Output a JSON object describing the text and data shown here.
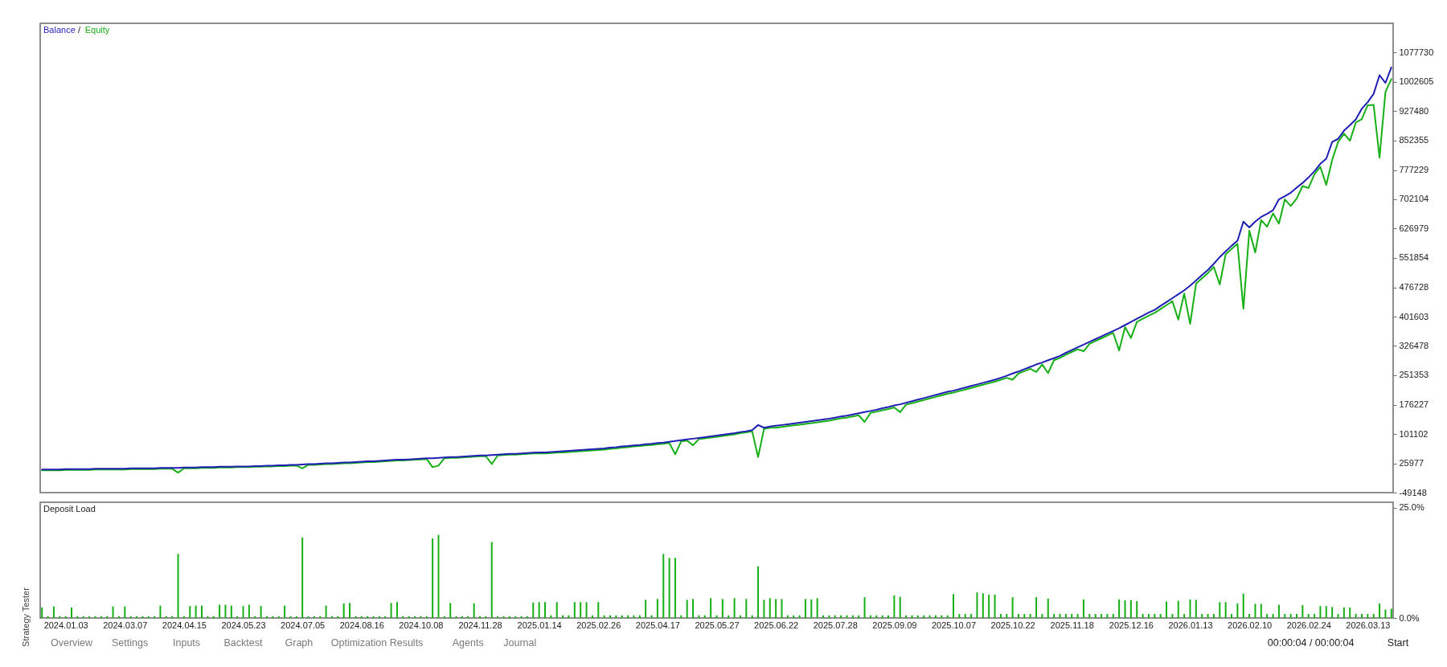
{
  "chart_data": [
    {
      "type": "line",
      "legend": "top left",
      "tick_labels": "y",
      "ylim": [
        -49148,
        1152855
      ],
      "yticks": [
        -49148,
        25977,
        101102,
        176227,
        251353,
        326478,
        401603,
        476728,
        551854,
        626979,
        702104,
        777229,
        852355,
        927480,
        1002605,
        1077730
      ],
      "annotations": [
        "/"
      ],
      "categories": [
        null,
        null,
        null,
        null,
        "2024.01.03",
        null,
        null,
        null,
        null,
        null,
        null,
        null,
        null,
        null,
        "2024.03.07",
        null,
        null,
        null,
        null,
        null,
        null,
        null,
        null,
        null,
        "2024.04.15",
        null,
        null,
        null,
        null,
        null,
        null,
        null,
        null,
        null,
        "2024.05.23",
        null,
        null,
        null,
        null,
        null,
        null,
        null,
        null,
        null,
        "2024.07.05",
        null,
        null,
        null,
        null,
        null,
        null,
        null,
        null,
        null,
        "2024.08.16",
        null,
        null,
        null,
        null,
        null,
        null,
        null,
        null,
        null,
        "2024.10.08",
        null,
        null,
        null,
        null,
        null,
        null,
        null,
        null,
        null,
        "2024.11.28",
        null,
        null,
        null,
        null,
        null,
        null,
        null,
        null,
        null,
        "2025.01.14",
        null,
        null,
        null,
        null,
        null,
        null,
        null,
        null,
        null,
        "2025.02.26",
        null,
        null,
        null,
        null,
        null,
        null,
        null,
        null,
        null,
        "2025.04.17",
        null,
        null,
        null,
        null,
        null,
        null,
        null,
        null,
        null,
        "2025.05.27",
        null,
        null,
        null,
        null,
        null,
        null,
        null,
        null,
        null,
        "2025.06.22",
        null,
        null,
        null,
        null,
        null,
        null,
        null,
        null,
        null,
        "2025.07.28",
        null,
        null,
        null,
        null,
        null,
        null,
        null,
        null,
        null,
        "2025.09.09",
        null,
        null,
        null,
        null,
        null,
        null,
        null,
        null,
        null,
        "2025.10.07",
        null,
        null,
        null,
        null,
        null,
        null,
        null,
        null,
        null,
        "2025.10.22",
        null,
        null,
        null,
        null,
        null,
        null,
        null,
        null,
        null,
        "2025.11.18",
        null,
        null,
        null,
        null,
        null,
        null,
        null,
        null,
        null,
        "2025.12.16",
        null,
        null,
        null,
        null,
        null,
        null,
        null,
        null,
        null,
        "2026.01.13",
        null,
        null,
        null,
        null,
        null,
        null,
        null,
        null,
        null,
        "2026.02.10",
        null,
        null,
        null,
        null,
        null,
        null,
        null,
        null,
        null,
        "2026.02.24",
        null,
        null,
        null,
        null,
        null,
        null,
        null,
        null,
        null,
        "2026.03.13",
        null,
        null,
        null,
        null
      ],
      "series": [
        {
          "name": "Balance",
          "color": "#1f1fb4",
          "values": [
            10000,
            10000,
            10000,
            10000,
            11000,
            11000,
            11000,
            11000,
            11000,
            12000,
            12000,
            12000,
            12000,
            12000,
            12000,
            13000,
            13000,
            13000,
            13000,
            13000,
            14000,
            14000,
            14000,
            14000,
            15000,
            15000,
            15000,
            16000,
            16000,
            16000,
            17000,
            17000,
            17000,
            18000,
            18000,
            18000,
            19000,
            19000,
            20000,
            20000,
            21000,
            21000,
            22000,
            22000,
            23000,
            24000,
            24000,
            25000,
            26000,
            26000,
            27000,
            28000,
            28000,
            29000,
            30000,
            31000,
            31000,
            32000,
            33000,
            34000,
            35000,
            35000,
            36000,
            37000,
            38000,
            39000,
            39000,
            40000,
            41000,
            42000,
            42000,
            43000,
            44000,
            45000,
            46000,
            46000,
            47000,
            48000,
            49000,
            50000,
            50000,
            51000,
            52000,
            53000,
            54000,
            54000,
            55000,
            56000,
            57000,
            58000,
            59000,
            60000,
            61000,
            62000,
            63000,
            64000,
            66000,
            67000,
            69000,
            70000,
            72000,
            73000,
            75000,
            76000,
            78000,
            79000,
            81000,
            83000,
            85000,
            87000,
            89000,
            91000,
            93000,
            95000,
            97000,
            99000,
            101000,
            103000,
            106000,
            108000,
            111000,
            124000,
            117000,
            120000,
            122000,
            124000,
            126000,
            128000,
            130000,
            132000,
            134000,
            136000,
            138000,
            140000,
            143000,
            146000,
            148000,
            151000,
            154000,
            157000,
            160000,
            163000,
            167000,
            170000,
            174000,
            177000,
            181000,
            185000,
            189000,
            193000,
            197000,
            201000,
            205000,
            209000,
            212000,
            216000,
            220000,
            224000,
            228000,
            232000,
            236000,
            240000,
            245000,
            250000,
            256000,
            261000,
            267000,
            273000,
            279000,
            284000,
            290000,
            295000,
            301000,
            309000,
            316000,
            323000,
            330000,
            337000,
            344000,
            351000,
            358000,
            365000,
            372000,
            380000,
            388000,
            396000,
            404000,
            412000,
            419000,
            429000,
            439000,
            449000,
            459000,
            469000,
            481000,
            494000,
            508000,
            521000,
            537000,
            554000,
            569000,
            583000,
            596000,
            645000,
            630000,
            645000,
            657000,
            665000,
            674000,
            702000,
            710000,
            719000,
            732000,
            744000,
            758000,
            774000,
            793000,
            806000,
            849000,
            857000,
            878000,
            892000,
            907000,
            934000,
            951000,
            972000,
            1020000,
            1000000,
            1040000
          ]
        },
        {
          "name": "Equity",
          "color": "#16b016",
          "values": [
            8000,
            8000,
            8000,
            8000,
            9000,
            9000,
            9000,
            9000,
            9000,
            10000,
            10000,
            10000,
            10000,
            10000,
            10000,
            11000,
            11000,
            11000,
            11000,
            11000,
            12000,
            12000,
            12000,
            2000,
            13000,
            13000,
            13000,
            14000,
            14000,
            14000,
            15000,
            15000,
            15000,
            16000,
            16000,
            16000,
            17000,
            17000,
            18000,
            18000,
            19000,
            19000,
            20000,
            20000,
            13000,
            22000,
            22000,
            23000,
            24000,
            24000,
            25000,
            26000,
            26000,
            27000,
            28000,
            29000,
            29000,
            30000,
            31000,
            32000,
            33000,
            33000,
            34000,
            35000,
            36000,
            37000,
            16000,
            20000,
            39000,
            40000,
            40000,
            41000,
            42000,
            43000,
            44000,
            44000,
            24000,
            46000,
            47000,
            48000,
            48000,
            49000,
            50000,
            51000,
            51000,
            51000,
            52000,
            53000,
            54000,
            55000,
            56000,
            57000,
            58000,
            59000,
            60000,
            61000,
            63000,
            64000,
            66000,
            67000,
            69000,
            70000,
            72000,
            73000,
            75000,
            76000,
            78000,
            49000,
            82000,
            84000,
            72000,
            88000,
            90000,
            92000,
            94000,
            96000,
            98000,
            100000,
            103000,
            105000,
            108000,
            42000,
            114000,
            117000,
            117000,
            119000,
            121000,
            123000,
            125000,
            127000,
            129000,
            131000,
            133000,
            135000,
            138000,
            141000,
            143000,
            146000,
            149000,
            132000,
            155000,
            158000,
            162000,
            165000,
            169000,
            157000,
            176000,
            180000,
            184000,
            188000,
            192000,
            196000,
            200000,
            204000,
            207000,
            211000,
            215000,
            219000,
            223000,
            227000,
            231000,
            235000,
            240000,
            245000,
            240000,
            256000,
            262000,
            268000,
            260000,
            279000,
            257000,
            290000,
            296000,
            304000,
            311000,
            318000,
            313000,
            332000,
            339000,
            346000,
            353000,
            360000,
            315000,
            375000,
            347000,
            388000,
            396000,
            404000,
            411000,
            421000,
            431000,
            441000,
            394000,
            461000,
            383000,
            486000,
            500000,
            513000,
            529000,
            484000,
            561000,
            575000,
            588000,
            422000,
            622000,
            566000,
            649000,
            632000,
            666000,
            640000,
            702000,
            685000,
            704000,
            736000,
            731000,
            766000,
            785000,
            739000,
            803000,
            849000,
            870000,
            852000,
            899000,
            907000,
            943000,
            944000,
            809000,
            977000,
            1010000
          ]
        }
      ]
    },
    {
      "type": "bar",
      "title": "Deposit Load",
      "ylim": [
        0,
        26.2
      ],
      "yticks": [
        {
          "value": 0,
          "label": "0.0%"
        },
        {
          "value": 25,
          "label": "25.0%"
        }
      ],
      "annotations": [
        "Strategy Tester",
        "Overview",
        "Settings",
        "Inputs",
        "Backtest",
        "Graph",
        "Optimization Results",
        "Agents",
        "Journal",
        "00:00:04 / 00:00:04",
        "Start"
      ],
      "categories": [
        null,
        null,
        null,
        null,
        "2024.01.03",
        null,
        null,
        null,
        null,
        null,
        null,
        null,
        null,
        null,
        "2024.03.07",
        null,
        null,
        null,
        null,
        null,
        null,
        null,
        null,
        null,
        "2024.04.15",
        null,
        null,
        null,
        null,
        null,
        null,
        null,
        null,
        null,
        "2024.05.23",
        null,
        null,
        null,
        null,
        null,
        null,
        null,
        null,
        null,
        "2024.07.05",
        null,
        null,
        null,
        null,
        null,
        null,
        null,
        null,
        null,
        "2024.08.16",
        null,
        null,
        null,
        null,
        null,
        null,
        null,
        null,
        null,
        "2024.10.08",
        null,
        null,
        null,
        null,
        null,
        null,
        null,
        null,
        null,
        "2024.11.28",
        null,
        null,
        null,
        null,
        null,
        null,
        null,
        null,
        null,
        "2025.01.14",
        null,
        null,
        null,
        null,
        null,
        null,
        null,
        null,
        null,
        "2025.02.26",
        null,
        null,
        null,
        null,
        null,
        null,
        null,
        null,
        null,
        "2025.04.17",
        null,
        null,
        null,
        null,
        null,
        null,
        null,
        null,
        null,
        "2025.05.27",
        null,
        null,
        null,
        null,
        null,
        null,
        null,
        null,
        null,
        "2025.06.22",
        null,
        null,
        null,
        null,
        null,
        null,
        null,
        null,
        null,
        "2025.07.28",
        null,
        null,
        null,
        null,
        null,
        null,
        null,
        null,
        null,
        "2025.09.09",
        null,
        null,
        null,
        null,
        null,
        null,
        null,
        null,
        null,
        "2025.10.07",
        null,
        null,
        null,
        null,
        null,
        null,
        null,
        null,
        null,
        "2025.10.22",
        null,
        null,
        null,
        null,
        null,
        null,
        null,
        null,
        null,
        "2025.11.18",
        null,
        null,
        null,
        null,
        null,
        null,
        null,
        null,
        null,
        "2025.12.16",
        null,
        null,
        null,
        null,
        null,
        null,
        null,
        null,
        null,
        "2026.01.13",
        null,
        null,
        null,
        null,
        null,
        null,
        null,
        null,
        null,
        "2026.02.10",
        null,
        null,
        null,
        null,
        null,
        null,
        null,
        null,
        null,
        "2026.02.24",
        null,
        null,
        null,
        null,
        null,
        null,
        null,
        null,
        null,
        "2026.03.13",
        null,
        null,
        null,
        null
      ],
      "series": [
        {
          "color": "#16b016",
          "values": [
            2.4,
            0.4,
            2.6,
            0.4,
            0.4,
            2.4,
            0.4,
            0.4,
            0.4,
            0.4,
            0.4,
            0.4,
            2.6,
            0.4,
            2.6,
            0.4,
            0.4,
            0.4,
            0.4,
            0.4,
            2.8,
            0.4,
            0.4,
            14.5,
            0.4,
            2.7,
            2.8,
            2.8,
            0.4,
            0.4,
            3.0,
            3.0,
            2.8,
            0.4,
            2.7,
            3.0,
            0.4,
            2.7,
            0.4,
            0.4,
            0.4,
            2.8,
            0.4,
            0.4,
            18.2,
            0.4,
            0.4,
            0.4,
            2.8,
            0.4,
            0.4,
            3.3,
            3.4,
            0.4,
            0.4,
            0.4,
            0.4,
            0.4,
            0.4,
            3.4,
            3.6,
            0.4,
            0.4,
            0.4,
            0.4,
            0.4,
            18.0,
            18.8,
            0.4,
            3.4,
            0.4,
            0.4,
            0.4,
            3.3,
            0.4,
            0.4,
            17.2,
            0.4,
            0.4,
            0.4,
            0.4,
            0.4,
            0.4,
            3.5,
            3.6,
            3.6,
            0.6,
            3.6,
            0.6,
            0.6,
            3.6,
            3.6,
            3.6,
            0.6,
            3.6,
            0.6,
            0.6,
            0.6,
            0.6,
            0.6,
            0.6,
            0.6,
            4.1,
            0.6,
            4.3,
            14.5,
            13.6,
            13.6,
            0.6,
            4.1,
            4.3,
            0.6,
            0.6,
            4.5,
            0.6,
            4.3,
            0.6,
            4.5,
            0.6,
            4.3,
            0.6,
            11.7,
            4.1,
            4.5,
            4.3,
            4.3,
            0.6,
            0.6,
            0.6,
            4.3,
            4.2,
            4.5,
            0.6,
            0.6,
            0.6,
            0.6,
            0.6,
            0.6,
            0.6,
            4.7,
            0.6,
            0.6,
            0.6,
            0.6,
            5.1,
            4.8,
            0.6,
            0.6,
            0.6,
            0.6,
            0.6,
            0.6,
            0.6,
            0.6,
            5.4,
            0.9,
            0.9,
            0.9,
            5.8,
            5.6,
            5.3,
            5.3,
            0.9,
            0.9,
            4.7,
            0.9,
            0.9,
            0.9,
            4.7,
            0.9,
            4.4,
            0.9,
            0.9,
            0.9,
            0.9,
            0.9,
            4.2,
            0.9,
            0.9,
            0.9,
            0.9,
            0.9,
            4.2,
            4.0,
            4.0,
            3.8,
            0.9,
            0.9,
            0.9,
            0.9,
            3.7,
            0.9,
            3.9,
            0.9,
            4.2,
            4.1,
            0.9,
            0.9,
            0.9,
            3.6,
            3.6,
            0.9,
            3.3,
            5.5,
            0.9,
            3.2,
            3.2,
            0.9,
            0.9,
            3.0,
            0.9,
            0.9,
            0.9,
            2.9,
            0.9,
            0.9,
            2.7,
            2.7,
            2.5,
            0.9,
            2.4,
            2.4,
            0.9,
            0.9,
            0.9,
            0.9,
            3.3,
            1.9,
            2.1
          ]
        }
      ]
    }
  ]
}
